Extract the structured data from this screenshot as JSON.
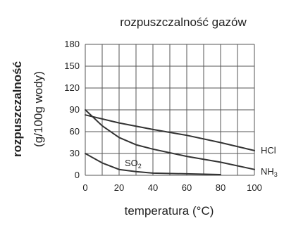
{
  "chart_data": {
    "type": "line",
    "title": "rozpuszczalność gazów",
    "xlabel": "temperatura (°C)",
    "ylabel": "rozpuszczalność",
    "ylabel_units": "(g/100g wody)",
    "xlim": [
      0,
      100
    ],
    "ylim": [
      0,
      180
    ],
    "x_ticks": [
      0,
      20,
      40,
      60,
      80,
      100
    ],
    "y_ticks": [
      0,
      30,
      60,
      90,
      120,
      150,
      180
    ],
    "grid": true,
    "series": [
      {
        "name": "HCl",
        "label_text": "HCl",
        "x": [
          0,
          20,
          40,
          60,
          80,
          100
        ],
        "values": [
          83,
          72,
          63,
          55,
          45,
          34
        ]
      },
      {
        "name": "NH3",
        "label_main": "NH",
        "label_sub": "3",
        "x": [
          0,
          10,
          20,
          30,
          40,
          50,
          60,
          80,
          100
        ],
        "values": [
          90,
          68,
          52,
          42,
          36,
          31,
          26,
          18,
          8
        ]
      },
      {
        "name": "SO2",
        "label_main": "SO",
        "label_sub": "2",
        "x": [
          0,
          10,
          20,
          30,
          40,
          60,
          80
        ],
        "values": [
          30,
          17,
          8,
          5,
          3,
          2,
          1
        ]
      }
    ],
    "line_color": "#333333",
    "grid_color": "#555555"
  }
}
